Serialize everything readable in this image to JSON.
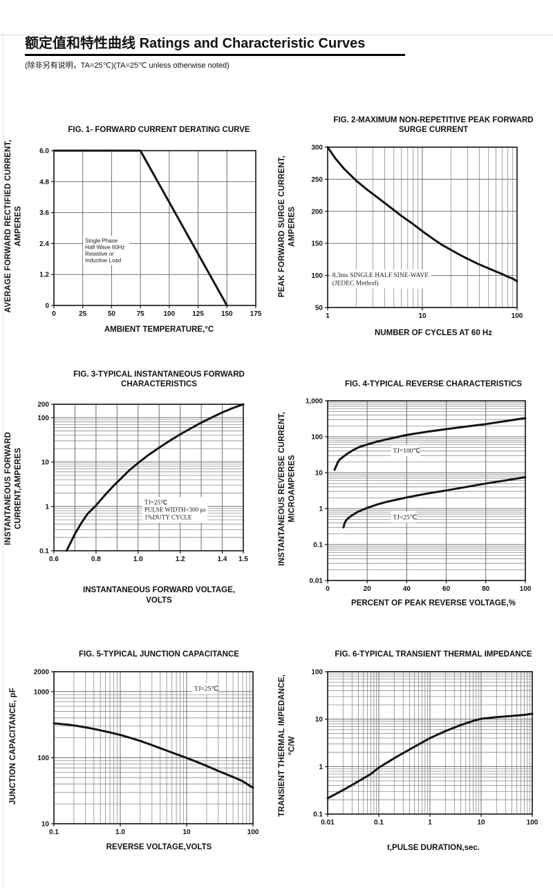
{
  "page": {
    "title_zh": "额定值和特性曲线",
    "title_en": "Ratings and Characteristic Curves",
    "subtitle": "(除非另有说明，TA=25℃)(TA=25℃  unless otherwise noted)"
  },
  "chart_data": [
    {
      "id": "fig1",
      "type": "line",
      "title": "FIG. 1- FORWARD CURRENT DERATING CURVE",
      "ylabel": "AVERAGE FORWARD RECTIFIED CURRENT,\nAMPERES",
      "xlabel": "AMBIENT TEMPERATURE,°C",
      "x_scale": "linear",
      "y_scale": "linear",
      "xlim": [
        0,
        175
      ],
      "ylim": [
        0,
        6
      ],
      "xticks": [
        {
          "v": 0,
          "l": "0"
        },
        {
          "v": 25,
          "l": "25"
        },
        {
          "v": 50,
          "l": "50"
        },
        {
          "v": 75,
          "l": "75"
        },
        {
          "v": 100,
          "l": "100"
        },
        {
          "v": 125,
          "l": "125"
        },
        {
          "v": 150,
          "l": "150"
        },
        {
          "v": 175,
          "l": "175"
        }
      ],
      "yticks": [
        {
          "v": 0,
          "l": "0"
        },
        {
          "v": 1.2,
          "l": "1.2"
        },
        {
          "v": 2.4,
          "l": "2.4"
        },
        {
          "v": 3.6,
          "l": "3.6"
        },
        {
          "v": 4.8,
          "l": "4.8"
        },
        {
          "v": 6,
          "l": "6.0"
        }
      ],
      "series": [
        {
          "name": "derating",
          "points": [
            [
              0,
              6
            ],
            [
              75,
              6
            ],
            [
              150,
              0
            ]
          ]
        }
      ],
      "annotations": [
        {
          "text": "Single Phase\nHalf Wave 60Hz\nResistive or\nInductive Load",
          "x": 27,
          "y": 2.62,
          "size": 8,
          "sans": true
        }
      ]
    },
    {
      "id": "fig2",
      "type": "line",
      "title": "FIG. 2-MAXIMUM NON-REPETITIVE PEAK FORWARD\nSURGE CURRENT",
      "ylabel": "PEAK  FORWARD SURGE CURRENT,\nAMPERES",
      "xlabel": "NUMBER OF CYCLES AT 60 Hz",
      "x_scale": "log",
      "y_scale": "linear",
      "xlim": [
        1,
        100
      ],
      "ylim": [
        50,
        300
      ],
      "xticks": [
        {
          "v": 1,
          "l": "1"
        },
        {
          "v": 10,
          "l": "10"
        },
        {
          "v": 100,
          "l": "100"
        }
      ],
      "yticks": [
        {
          "v": 50,
          "l": "50"
        },
        {
          "v": 100,
          "l": "100"
        },
        {
          "v": 150,
          "l": "150"
        },
        {
          "v": 200,
          "l": "200"
        },
        {
          "v": 250,
          "l": "250"
        },
        {
          "v": 300,
          "l": "300"
        }
      ],
      "series": [
        {
          "name": "surge",
          "points": [
            [
              1,
              300
            ],
            [
              1.2,
              283
            ],
            [
              1.5,
              266
            ],
            [
              2,
              248
            ],
            [
              2.5,
              236
            ],
            [
              3,
              227
            ],
            [
              4,
              213
            ],
            [
              5,
              202
            ],
            [
              6,
              193
            ],
            [
              8,
              180
            ],
            [
              10,
              169
            ],
            [
              13,
              157
            ],
            [
              16,
              148
            ],
            [
              20,
              140
            ],
            [
              25,
              132
            ],
            [
              30,
              126
            ],
            [
              40,
              117
            ],
            [
              50,
              111
            ],
            [
              60,
              106
            ],
            [
              70,
              102
            ],
            [
              80,
              98
            ],
            [
              90,
              95
            ],
            [
              100,
              91
            ]
          ]
        }
      ],
      "annotations": [
        {
          "text": "8.3ms SINGLE HALF SINE-WAVE\n(JEDEC Method)",
          "x": 1.12,
          "y": 106,
          "size": 9.5
        }
      ]
    },
    {
      "id": "fig3",
      "type": "line",
      "title": "FIG. 3-TYPICAL INSTANTANEOUS FORWARD\nCHARACTERISTICS",
      "ylabel": "INSTANTANEOUS FORWARD\nCURRENT,AMPERES",
      "xlabel": "INSTANTANEOUS FORWARD VOLTAGE,\nVOLTS",
      "x_scale": "linear",
      "y_scale": "log",
      "xlim": [
        0.6,
        1.5
      ],
      "ylim": [
        0.1,
        200
      ],
      "xticks": [
        {
          "v": 0.6,
          "l": "0.6"
        },
        {
          "v": 0.7,
          "l": ""
        },
        {
          "v": 0.8,
          "l": "0.8"
        },
        {
          "v": 0.9,
          "l": ""
        },
        {
          "v": 1.0,
          "l": "1.0"
        },
        {
          "v": 1.1,
          "l": ""
        },
        {
          "v": 1.2,
          "l": "1.2"
        },
        {
          "v": 1.3,
          "l": ""
        },
        {
          "v": 1.4,
          "l": "1.4"
        },
        {
          "v": 1.5,
          "l": "1.5"
        }
      ],
      "yticks": [
        {
          "v": 0.1,
          "l": "0.1"
        },
        {
          "v": 1,
          "l": "1"
        },
        {
          "v": 10,
          "l": "10"
        },
        {
          "v": 100,
          "l": "100"
        },
        {
          "v": 200,
          "l": "200"
        }
      ],
      "series": [
        {
          "name": "forward",
          "points": [
            [
              0.66,
              0.1
            ],
            [
              0.68,
              0.155
            ],
            [
              0.7,
              0.24
            ],
            [
              0.73,
              0.42
            ],
            [
              0.76,
              0.68
            ],
            [
              0.8,
              1.05
            ],
            [
              0.84,
              1.75
            ],
            [
              0.88,
              2.8
            ],
            [
              0.92,
              4.3
            ],
            [
              0.96,
              6.6
            ],
            [
              1.0,
              9.5
            ],
            [
              1.05,
              14.5
            ],
            [
              1.1,
              21
            ],
            [
              1.15,
              30
            ],
            [
              1.2,
              42
            ],
            [
              1.25,
              57
            ],
            [
              1.3,
              77
            ],
            [
              1.35,
              101
            ],
            [
              1.4,
              131
            ],
            [
              1.45,
              164
            ],
            [
              1.5,
              200
            ]
          ]
        }
      ],
      "annotations": [
        {
          "text": "TJ=25℃\nPULSE WIDTH=300 μs\n1%DUTY CYCLE",
          "x": 1.03,
          "y": 1.45,
          "size": 9
        }
      ]
    },
    {
      "id": "fig4",
      "type": "line",
      "title": "FIG. 4-TYPICAL REVERSE CHARACTERISTICS",
      "ylabel": "INSTANTANEOUS REVERSE CURRENT,\nMICROAMPERES",
      "xlabel": "PERCENT OF PEAK REVERSE VOLTAGE,%",
      "x_scale": "linear",
      "y_scale": "log",
      "xlim": [
        0,
        100
      ],
      "ylim": [
        0.01,
        1000
      ],
      "xticks": [
        {
          "v": 0,
          "l": "0"
        },
        {
          "v": 20,
          "l": "20"
        },
        {
          "v": 40,
          "l": "40"
        },
        {
          "v": 60,
          "l": "60"
        },
        {
          "v": 80,
          "l": "80"
        },
        {
          "v": 100,
          "l": "100"
        }
      ],
      "yticks": [
        {
          "v": 0.01,
          "l": "0.01"
        },
        {
          "v": 0.1,
          "l": "0.1"
        },
        {
          "v": 1,
          "l": "1"
        },
        {
          "v": 10,
          "l": "10"
        },
        {
          "v": 100,
          "l": "100"
        },
        {
          "v": 1000,
          "l": "1,000"
        }
      ],
      "series": [
        {
          "name": "TJ=100℃",
          "points": [
            [
              3.5,
              12
            ],
            [
              4,
              14
            ],
            [
              4.5,
              16
            ],
            [
              5,
              19
            ],
            [
              6,
              23
            ],
            [
              8,
              28
            ],
            [
              10,
              34
            ],
            [
              13,
              43
            ],
            [
              16,
              52
            ],
            [
              20,
              61
            ],
            [
              25,
              73
            ],
            [
              30,
              85
            ],
            [
              35,
              98
            ],
            [
              40,
              112
            ],
            [
              50,
              137
            ],
            [
              60,
              163
            ],
            [
              70,
              192
            ],
            [
              80,
              225
            ],
            [
              90,
              272
            ],
            [
              100,
              330
            ]
          ]
        },
        {
          "name": "TJ=25℃",
          "points": [
            [
              8,
              0.3
            ],
            [
              8.5,
              0.38
            ],
            [
              9,
              0.44
            ],
            [
              10,
              0.52
            ],
            [
              12,
              0.63
            ],
            [
              15,
              0.8
            ],
            [
              20,
              1.05
            ],
            [
              25,
              1.3
            ],
            [
              30,
              1.55
            ],
            [
              40,
              2.05
            ],
            [
              50,
              2.6
            ],
            [
              60,
              3.2
            ],
            [
              70,
              4.0
            ],
            [
              80,
              5.0
            ],
            [
              90,
              6.1
            ],
            [
              100,
              7.5
            ]
          ]
        }
      ],
      "annotations": [
        {
          "text": "TJ=100℃",
          "x": 33,
          "y": 52,
          "size": 9.5
        },
        {
          "text": "TJ=25℃",
          "x": 33,
          "y": 0.72,
          "size": 9.5
        }
      ]
    },
    {
      "id": "fig5",
      "type": "line",
      "title": "FIG. 5-TYPICAL JUNCTION CAPACITANCE",
      "ylabel": "JUNCTION CAPACITANCE, pF",
      "xlabel": "REVERSE VOLTAGE,VOLTS",
      "x_scale": "log",
      "y_scale": "log",
      "xlim": [
        0.1,
        100
      ],
      "ylim": [
        10,
        2000
      ],
      "xticks": [
        {
          "v": 0.1,
          "l": "0.1"
        },
        {
          "v": 1,
          "l": "1.0"
        },
        {
          "v": 10,
          "l": "10"
        },
        {
          "v": 100,
          "l": "100"
        }
      ],
      "yticks": [
        {
          "v": 10,
          "l": "10"
        },
        {
          "v": 100,
          "l": "100"
        },
        {
          "v": 1000,
          "l": "1000"
        },
        {
          "v": 2000,
          "l": "2000"
        }
      ],
      "series": [
        {
          "name": "capacitance",
          "points": [
            [
              0.1,
              330
            ],
            [
              0.13,
              323
            ],
            [
              0.17,
              314
            ],
            [
              0.22,
              303
            ],
            [
              0.3,
              288
            ],
            [
              0.4,
              272
            ],
            [
              0.55,
              254
            ],
            [
              0.7,
              241
            ],
            [
              1,
              221
            ],
            [
              1.4,
              200
            ],
            [
              2,
              179
            ],
            [
              3,
              155
            ],
            [
              4,
              139
            ],
            [
              5,
              128
            ],
            [
              7,
              113
            ],
            [
              10,
              99
            ],
            [
              14,
              87
            ],
            [
              20,
              75
            ],
            [
              30,
              63
            ],
            [
              40,
              56
            ],
            [
              50,
              51
            ],
            [
              70,
              44
            ],
            [
              100,
              35
            ]
          ]
        }
      ],
      "annotations": [
        {
          "text": "TJ=25℃",
          "x": 13,
          "y": 1250,
          "size": 9.5
        }
      ]
    },
    {
      "id": "fig6",
      "type": "line",
      "title": "FIG. 6-TYPICAL TRANSIENT THERMAL IMPEDANCE",
      "ylabel": "TRANSIENT THERMAL IMPEDANCE,\n°C/W",
      "xlabel": "t,PULSE DURATION,sec.",
      "x_scale": "log",
      "y_scale": "log",
      "xlim": [
        0.01,
        100
      ],
      "ylim": [
        0.1,
        100
      ],
      "xticks": [
        {
          "v": 0.01,
          "l": "0.01"
        },
        {
          "v": 0.1,
          "l": "0.1"
        },
        {
          "v": 1,
          "l": "1"
        },
        {
          "v": 10,
          "l": "10"
        },
        {
          "v": 100,
          "l": "100"
        }
      ],
      "yticks": [
        {
          "v": 0.1,
          "l": "0.1"
        },
        {
          "v": 1,
          "l": "1"
        },
        {
          "v": 10,
          "l": "10"
        },
        {
          "v": 100,
          "l": "100"
        }
      ],
      "series": [
        {
          "name": "thermal-impedance",
          "points": [
            [
              0.01,
              0.215
            ],
            [
              0.02,
              0.32
            ],
            [
              0.04,
              0.49
            ],
            [
              0.07,
              0.7
            ],
            [
              0.1,
              0.95
            ],
            [
              0.2,
              1.5
            ],
            [
              0.4,
              2.3
            ],
            [
              0.7,
              3.2
            ],
            [
              1,
              4.0
            ],
            [
              2,
              5.6
            ],
            [
              4,
              7.5
            ],
            [
              7,
              9.2
            ],
            [
              10,
              10.2
            ],
            [
              20,
              11.0
            ],
            [
              40,
              11.7
            ],
            [
              70,
              12.3
            ],
            [
              100,
              13.0
            ]
          ]
        }
      ],
      "annotations": []
    }
  ]
}
